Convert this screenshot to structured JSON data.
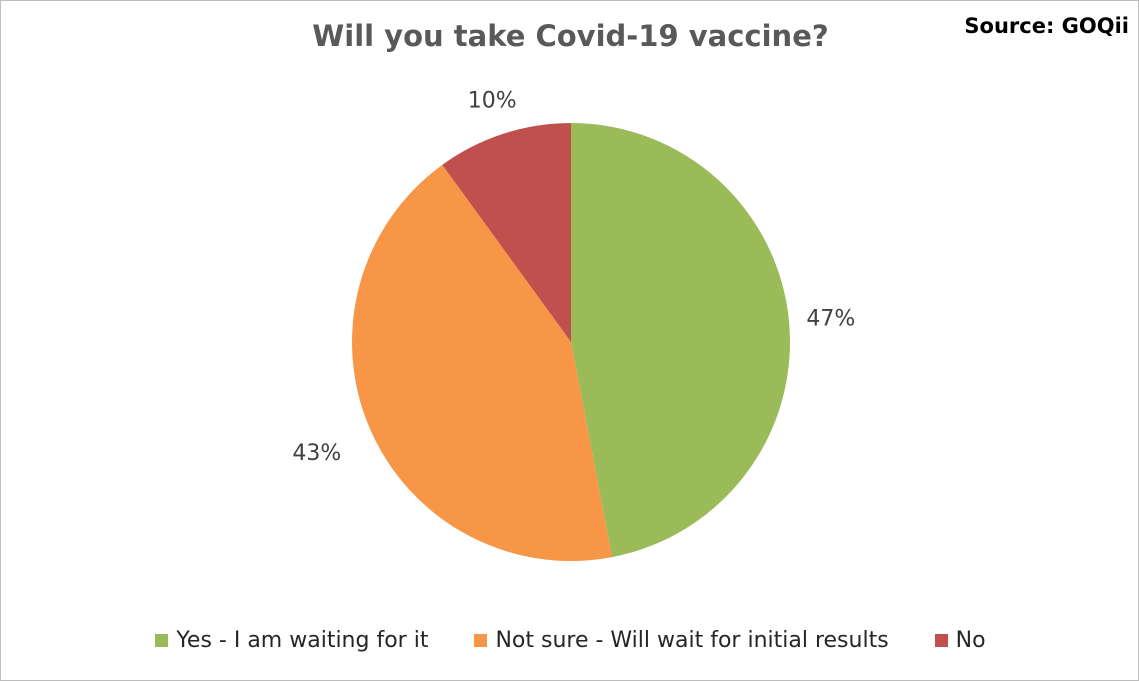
{
  "chart_data": {
    "type": "pie",
    "title": "Will you take Covid-19 vaccine?",
    "source": "Source: GOQii",
    "slices": [
      {
        "label": "Yes - I am waiting for it",
        "value": 47,
        "display": "47%",
        "color": "#9bbb59"
      },
      {
        "label": "Not sure - Will wait for initial results",
        "value": 43,
        "display": "43%",
        "color": "#f79646"
      },
      {
        "label": "No",
        "value": 10,
        "display": "10%",
        "color": "#c0504d"
      }
    ],
    "legend_position": "bottom"
  }
}
